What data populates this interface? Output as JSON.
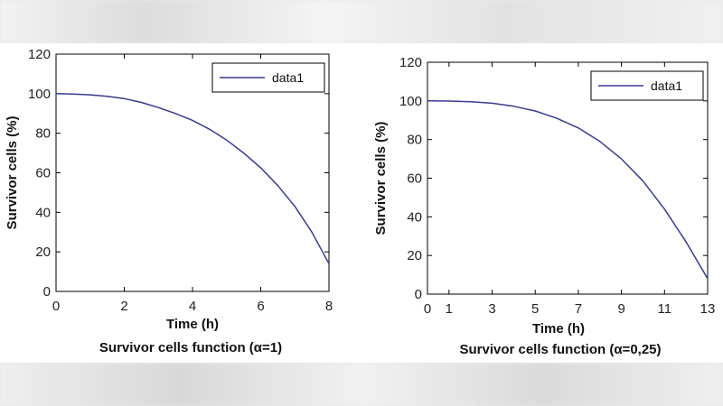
{
  "colors": {
    "line": "#3a3a8c",
    "axes": "#000000",
    "background": "#ffffff"
  },
  "chart_data": [
    {
      "type": "line",
      "title": "",
      "caption": "Survivor cells function (α=1)",
      "xlabel": "Time (h)",
      "ylabel": "Survivor cells (%)",
      "xlim": [
        0,
        8
      ],
      "ylim": [
        0,
        120
      ],
      "xticks": [
        0,
        2,
        4,
        6,
        8
      ],
      "xtick_labels": [
        "0",
        "2",
        "4",
        "6",
        "8"
      ],
      "yticks": [
        0,
        20,
        40,
        60,
        80,
        100,
        120
      ],
      "ytick_labels": [
        "0",
        "20",
        "40",
        "60",
        "80",
        "100",
        "120"
      ],
      "legend": {
        "position": "top-right",
        "entries": [
          "data1"
        ]
      },
      "grid": false,
      "series": [
        {
          "name": "data1",
          "x": [
            0,
            0.5,
            1,
            1.5,
            2,
            2.5,
            3,
            3.5,
            4,
            4.5,
            5,
            5.5,
            6,
            6.5,
            7,
            7.5,
            8
          ],
          "y": [
            100,
            99.8,
            99.4,
            98.7,
            97.5,
            95.6,
            93.0,
            90.0,
            86.5,
            82.0,
            76.5,
            70.0,
            62.5,
            53.5,
            43.0,
            30.0,
            14.0
          ]
        }
      ]
    },
    {
      "type": "line",
      "title": "",
      "caption": "Survivor cells function (α=0,25)",
      "xlabel": "Time (h)",
      "ylabel": "Survivor cells (%)",
      "xlim": [
        0,
        13
      ],
      "ylim": [
        0,
        120
      ],
      "xticks": [
        0,
        1,
        3,
        5,
        7,
        9,
        11,
        13
      ],
      "xtick_labels": [
        "0",
        "1",
        "3",
        "5",
        "7",
        "9",
        "11",
        "13"
      ],
      "yticks": [
        0,
        20,
        40,
        60,
        80,
        100,
        120
      ],
      "ytick_labels": [
        "0",
        "20",
        "40",
        "60",
        "80",
        "100",
        "120"
      ],
      "legend": {
        "position": "top-right",
        "entries": [
          "data1"
        ]
      },
      "grid": false,
      "series": [
        {
          "name": "data1",
          "x": [
            0,
            1,
            2,
            3,
            4,
            5,
            6,
            7,
            8,
            9,
            10,
            11,
            12,
            13
          ],
          "y": [
            100,
            99.9,
            99.6,
            98.8,
            97.2,
            94.8,
            91.0,
            86.0,
            79.0,
            70.0,
            58.5,
            44.0,
            27.0,
            8.0
          ]
        }
      ]
    }
  ]
}
